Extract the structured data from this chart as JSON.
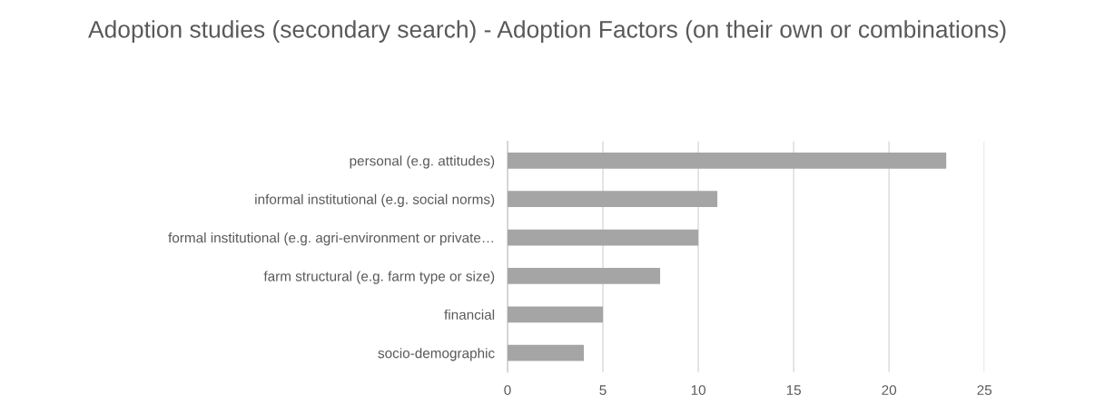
{
  "chart_data": {
    "type": "bar",
    "orientation": "horizontal",
    "title": "Adoption studies (secondary search) - Adoption Factors (on their own or combinations)",
    "categories": [
      "personal (e.g. attitudes)",
      "informal institutional (e.g. social norms)",
      "formal institutional (e.g. agri-environment or private…",
      "farm structural (e.g. farm type or size)",
      "financial",
      "socio-demographic"
    ],
    "values": [
      23,
      11,
      10,
      8,
      5,
      4
    ],
    "color": "#a5a5a5",
    "xlim": [
      0,
      25
    ],
    "xticks": [
      0,
      5,
      10,
      15,
      20,
      25
    ],
    "grid": "x",
    "legend": false
  }
}
